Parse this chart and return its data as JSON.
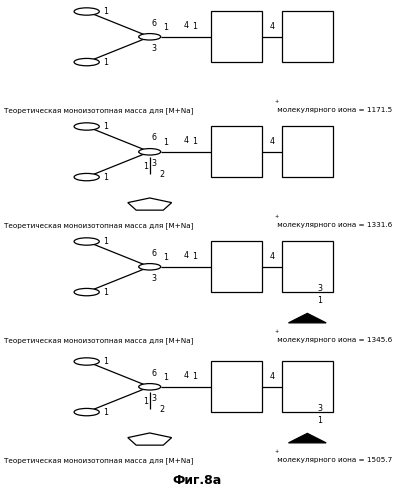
{
  "title": "Фиг.8а",
  "caption_pre": "Теоретическая моноизотопная масса для [M+Na]",
  "caption_post": " молекулярного иона = ",
  "masses": [
    "1171.5",
    "1331.6",
    "1345.6",
    "1505.7"
  ],
  "panels": [
    {
      "has_pentagon": false,
      "has_triangle": false
    },
    {
      "has_pentagon": true,
      "has_triangle": false
    },
    {
      "has_pentagon": false,
      "has_triangle": true
    },
    {
      "has_pentagon": true,
      "has_triangle": true
    }
  ],
  "bg_color": "#ffffff",
  "lc": "#000000"
}
